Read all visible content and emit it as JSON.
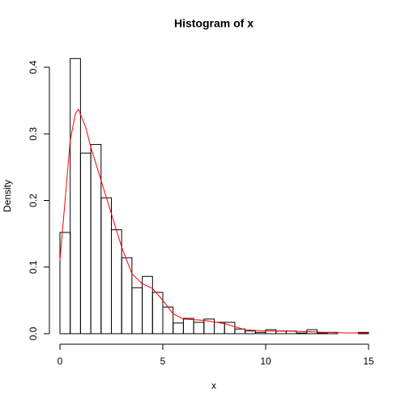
{
  "chart_data": {
    "type": "histogram",
    "title": "Histogram of x",
    "x_label": "x",
    "y_label": "Density",
    "bins": [
      0,
      0.5,
      1,
      1.5,
      2,
      2.5,
      3,
      3.5,
      4,
      4.5,
      5,
      5.5,
      6,
      6.5,
      7,
      7.5,
      8,
      8.5,
      9,
      9.5,
      10,
      10.5,
      11,
      11.5,
      12,
      12.5,
      13,
      13.5,
      14,
      14.5,
      15
    ],
    "values": [
      0.152,
      0.413,
      0.271,
      0.284,
      0.204,
      0.156,
      0.114,
      0.069,
      0.086,
      0.062,
      0.04,
      0.016,
      0.023,
      0.017,
      0.022,
      0.017,
      0.017,
      0.007,
      0.004,
      0.002,
      0.006,
      0.004,
      0.004,
      0.001,
      0.006,
      0.001,
      0.002,
      0,
      0,
      0.002
    ],
    "bar_edge_color": "#000000",
    "density": {
      "type": "line",
      "color": "#ff0000",
      "x": [
        0,
        0.25,
        0.5,
        0.75,
        0.9,
        1.25,
        1.5,
        2,
        2.5,
        3,
        3.5,
        4,
        4.5,
        5,
        5.5,
        6,
        7,
        8,
        9,
        10,
        11,
        12,
        13,
        14,
        15
      ],
      "values": [
        0.11,
        0.2,
        0.29,
        0.33,
        0.337,
        0.31,
        0.28,
        0.23,
        0.18,
        0.13,
        0.09,
        0.075,
        0.068,
        0.05,
        0.03,
        0.022,
        0.02,
        0.015,
        0.006,
        0.004,
        0.004,
        0.003,
        0.002,
        0.001,
        0.001
      ]
    },
    "xlim": [
      0,
      15
    ],
    "xticks": [
      0,
      5,
      10,
      15
    ],
    "ylim": [
      0,
      0.42
    ],
    "yticks": [
      {
        "value": 0,
        "label": "0.0"
      },
      0.1,
      0.2,
      0.3,
      0.4
    ]
  }
}
